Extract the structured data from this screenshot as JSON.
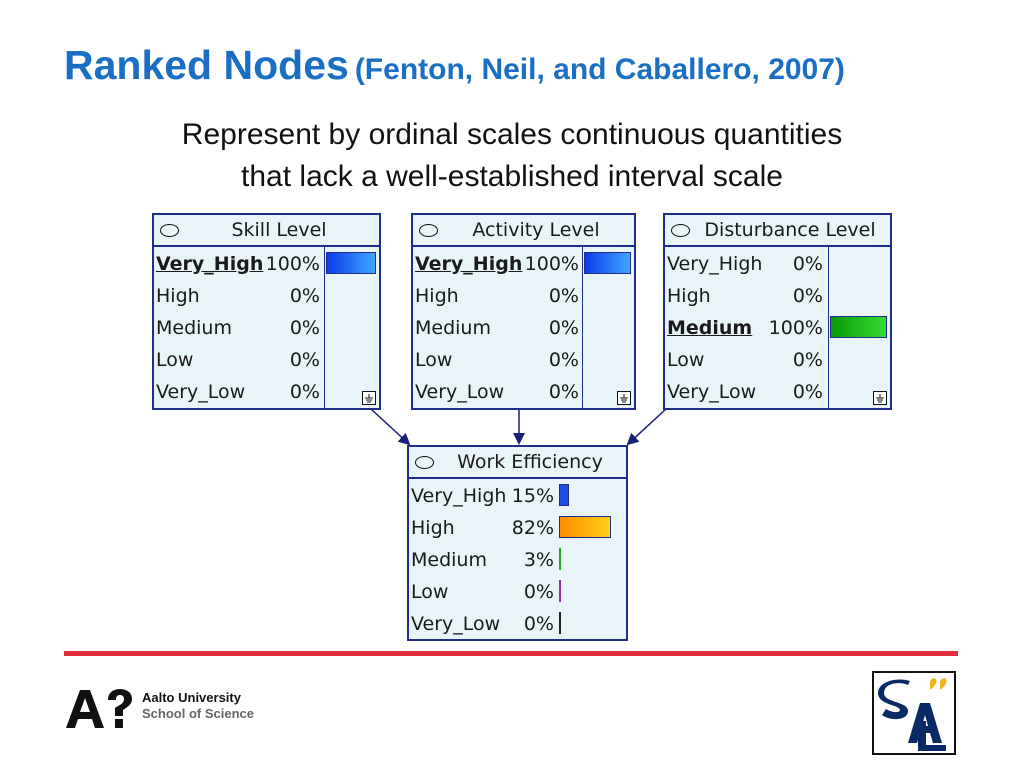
{
  "title": {
    "main": "Ranked Nodes",
    "citation": "(Fenton, Neil, and Caballero, 2007)"
  },
  "subtitle": {
    "line1": "Represent by ordinal scales continuous quantities",
    "line2": "that lack a well-established interval scale"
  },
  "nodes": {
    "skill": {
      "title": "Skill Level",
      "states": [
        {
          "label": "Very_High",
          "pct": "100%",
          "value": 1.0
        },
        {
          "label": "High",
          "pct": "0%",
          "value": 0
        },
        {
          "label": "Medium",
          "pct": "0%",
          "value": 0
        },
        {
          "label": "Low",
          "pct": "0%",
          "value": 0
        },
        {
          "label": "Very_Low",
          "pct": "0%",
          "value": 0
        }
      ]
    },
    "activity": {
      "title": "Activity Level",
      "states": [
        {
          "label": "Very_High",
          "pct": "100%",
          "value": 1.0
        },
        {
          "label": "High",
          "pct": "0%",
          "value": 0
        },
        {
          "label": "Medium",
          "pct": "0%",
          "value": 0
        },
        {
          "label": "Low",
          "pct": "0%",
          "value": 0
        },
        {
          "label": "Very_Low",
          "pct": "0%",
          "value": 0
        }
      ]
    },
    "disturbance": {
      "title": "Disturbance Level",
      "states": [
        {
          "label": "Very_High",
          "pct": "0%",
          "value": 0
        },
        {
          "label": "High",
          "pct": "0%",
          "value": 0
        },
        {
          "label": "Medium",
          "pct": "100%",
          "value": 1.0
        },
        {
          "label": "Low",
          "pct": "0%",
          "value": 0
        },
        {
          "label": "Very_Low",
          "pct": "0%",
          "value": 0
        }
      ]
    },
    "efficiency": {
      "title": "Work Efficiency",
      "states": [
        {
          "label": "Very_High",
          "pct": "15%",
          "value": 0.15
        },
        {
          "label": "High",
          "pct": "82%",
          "value": 0.82
        },
        {
          "label": "Medium",
          "pct": "3%",
          "value": 0.03
        },
        {
          "label": "Low",
          "pct": "0%",
          "value": 0
        },
        {
          "label": "Very_Low",
          "pct": "0%",
          "value": 0
        }
      ]
    }
  },
  "footer": {
    "university": "Aalto University",
    "school": "School of Science"
  },
  "colors": {
    "title": "#1a6fc4",
    "divider": "#e0303a",
    "node_fill": "#e8f4f8",
    "node_border": "#1f2d8c"
  }
}
